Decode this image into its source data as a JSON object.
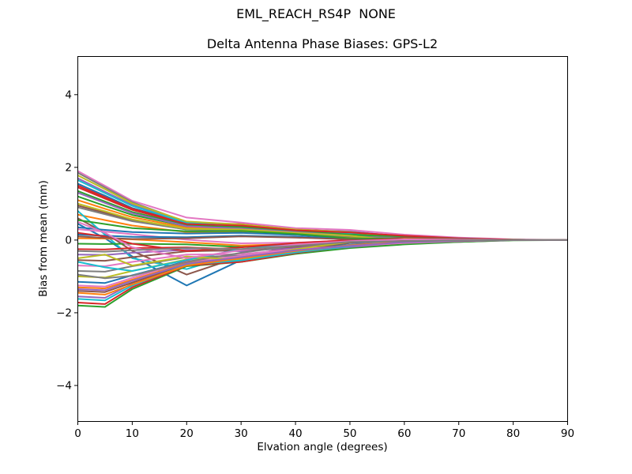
{
  "suptitle": "EML_REACH_RS4P  NONE",
  "chart_data": {
    "type": "line",
    "title": "Delta Antenna Phase Biases: GPS-L2",
    "xlabel": "Elvation angle (degrees)",
    "ylabel": "Bias from mean (mm)",
    "xlim": [
      0,
      90
    ],
    "ylim": [
      -4.99,
      5.05
    ],
    "xticks": [
      0,
      10,
      20,
      30,
      40,
      50,
      60,
      70,
      80,
      90
    ],
    "yticks": [
      -4,
      -2,
      0,
      2,
      4
    ],
    "grid": false,
    "legend": "none",
    "x": [
      0,
      5,
      10,
      20,
      30,
      40,
      50,
      60,
      70,
      80,
      90
    ],
    "series": [
      {
        "color": "#1f77b4",
        "values": [
          1.55,
          1.22,
          0.88,
          0.47,
          0.42,
          0.29,
          0.2,
          0.1,
          0.05,
          0.01,
          0
        ]
      },
      {
        "color": "#ff7f0e",
        "values": [
          1.1,
          0.86,
          0.63,
          0.34,
          0.32,
          0.22,
          0.1,
          -0.05,
          -0.03,
          0,
          0
        ]
      },
      {
        "color": "#2ca02c",
        "values": [
          1.35,
          1.06,
          0.77,
          0.42,
          0.38,
          0.26,
          0.18,
          0.08,
          0.03,
          0.01,
          0
        ]
      },
      {
        "color": "#d62728",
        "values": [
          1.5,
          1.18,
          0.86,
          0.47,
          0.44,
          0.3,
          0.22,
          -0.08,
          -0.04,
          0,
          0
        ]
      },
      {
        "color": "#9467bd",
        "values": [
          1.7,
          1.33,
          0.97,
          0.49,
          0.41,
          0.27,
          0.24,
          0.09,
          0.04,
          0.01,
          0
        ]
      },
      {
        "color": "#8c564b",
        "values": [
          0.95,
          0.75,
          0.54,
          0.29,
          0.26,
          0.18,
          0.08,
          -0.04,
          -0.03,
          0,
          0
        ]
      },
      {
        "color": "#e377c2",
        "values": [
          1.9,
          1.49,
          1.08,
          0.62,
          0.48,
          0.33,
          0.28,
          0.15,
          0.07,
          0.02,
          0
        ]
      },
      {
        "color": "#7f7f7f",
        "values": [
          1.85,
          1.45,
          1.04,
          0.49,
          0.35,
          0.23,
          0.18,
          -0.1,
          -0.05,
          0,
          0
        ]
      },
      {
        "color": "#bcbd22",
        "values": [
          1.78,
          1.4,
          1.01,
          0.51,
          0.43,
          0.29,
          0.22,
          0.07,
          0.03,
          0.01,
          0
        ]
      },
      {
        "color": "#17becf",
        "values": [
          1.65,
          1.29,
          0.94,
          0.47,
          0.38,
          0.25,
          0.19,
          -0.05,
          -0.02,
          0,
          0
        ]
      },
      {
        "color": "#1f77b4",
        "values": [
          0.45,
          0.05,
          -0.45,
          -1.25,
          -0.55,
          -0.2,
          -0.06,
          -0.08,
          -0.04,
          0,
          0
        ]
      },
      {
        "color": "#ff7f0e",
        "values": [
          0.7,
          0.55,
          0.4,
          0.22,
          0.21,
          0.14,
          0.07,
          0.05,
          0.03,
          0,
          0
        ]
      },
      {
        "color": "#2ca02c",
        "values": [
          1.2,
          0.94,
          0.69,
          0.38,
          0.36,
          0.25,
          0.15,
          0.09,
          0.04,
          0.01,
          0
        ]
      },
      {
        "color": "#d62728",
        "values": [
          1.45,
          1.14,
          0.83,
          0.44,
          0.4,
          0.27,
          0.21,
          0.12,
          0.05,
          0.01,
          0
        ]
      },
      {
        "color": "#9467bd",
        "values": [
          1.3,
          1.02,
          0.74,
          0.38,
          0.32,
          0.22,
          0.12,
          -0.07,
          -0.04,
          0,
          0
        ]
      },
      {
        "color": "#8c564b",
        "values": [
          0.6,
          0.2,
          -0.3,
          -0.95,
          -0.45,
          -0.18,
          -0.06,
          0.02,
          0.01,
          0,
          0
        ]
      },
      {
        "color": "#e377c2",
        "values": [
          0.3,
          0.23,
          0.16,
          0.01,
          -0.09,
          -0.07,
          -0.01,
          0.04,
          0.02,
          0,
          0
        ]
      },
      {
        "color": "#7f7f7f",
        "values": [
          0.9,
          0.71,
          0.52,
          0.29,
          0.27,
          0.19,
          0.1,
          0.06,
          0.03,
          0,
          0
        ]
      },
      {
        "color": "#bcbd22",
        "values": [
          1.0,
          0.79,
          0.57,
          0.31,
          0.29,
          0.2,
          0.12,
          -0.04,
          -0.03,
          0,
          0
        ]
      },
      {
        "color": "#17becf",
        "values": [
          0.8,
          0.15,
          -0.5,
          -0.8,
          -0.35,
          -0.12,
          -0.03,
          0.02,
          0.01,
          0,
          0
        ]
      },
      {
        "color": "#1f77b4",
        "values": [
          0.15,
          0.12,
          0.09,
          0.08,
          0.12,
          0.09,
          0.02,
          -0.03,
          -0.02,
          0,
          0
        ]
      },
      {
        "color": "#ff7f0e",
        "values": [
          0.05,
          0.04,
          0.02,
          -0.06,
          -0.15,
          -0.11,
          -0.02,
          0.05,
          0.03,
          0,
          0
        ]
      },
      {
        "color": "#2ca02c",
        "values": [
          -0.1,
          -0.11,
          -0.1,
          -0.12,
          -0.19,
          -0.14,
          -0.05,
          -0.04,
          -0.02,
          0,
          0
        ]
      },
      {
        "color": "#d62728",
        "values": [
          -0.25,
          -0.26,
          -0.22,
          -0.2,
          -0.26,
          -0.18,
          -0.03,
          0.05,
          0.03,
          0,
          0
        ]
      },
      {
        "color": "#9467bd",
        "values": [
          -0.4,
          -0.41,
          -0.35,
          -0.27,
          -0.31,
          -0.21,
          -0.07,
          -0.07,
          -0.03,
          0,
          0
        ]
      },
      {
        "color": "#8c564b",
        "values": [
          -0.55,
          -0.57,
          -0.47,
          -0.31,
          -0.28,
          -0.18,
          -0.04,
          0.07,
          0.04,
          0,
          0
        ]
      },
      {
        "color": "#e377c2",
        "values": [
          -0.7,
          -0.72,
          -0.6,
          -0.4,
          -0.39,
          -0.25,
          -0.15,
          -0.09,
          -0.05,
          0,
          0
        ]
      },
      {
        "color": "#7f7f7f",
        "values": [
          -0.85,
          -0.87,
          -0.72,
          -0.47,
          -0.43,
          -0.28,
          -0.13,
          0.03,
          0.02,
          0,
          0
        ]
      },
      {
        "color": "#bcbd22",
        "values": [
          -1.0,
          -1.03,
          -0.85,
          -0.53,
          -0.47,
          -0.3,
          -0.17,
          -0.06,
          -0.03,
          0,
          0
        ]
      },
      {
        "color": "#17becf",
        "values": [
          -0.6,
          -0.75,
          -0.85,
          -0.55,
          -0.25,
          -0.1,
          -0.02,
          0.03,
          0.02,
          0,
          0
        ]
      },
      {
        "color": "#1f77b4",
        "values": [
          -1.15,
          -1.18,
          -0.97,
          -0.58,
          -0.48,
          -0.3,
          -0.08,
          0.04,
          0.03,
          0,
          0
        ]
      },
      {
        "color": "#ff7f0e",
        "values": [
          -1.3,
          -1.33,
          -1.09,
          -0.63,
          -0.48,
          -0.29,
          -0.18,
          -0.1,
          -0.04,
          0,
          0
        ]
      },
      {
        "color": "#2ca02c",
        "values": [
          -1.8,
          -1.84,
          -1.35,
          -0.72,
          -0.6,
          -0.38,
          -0.22,
          -0.12,
          -0.05,
          -0.01,
          0
        ]
      },
      {
        "color": "#d62728",
        "values": [
          -1.72,
          -1.76,
          -1.3,
          -0.7,
          -0.6,
          -0.36,
          -0.17,
          0.03,
          0.02,
          0,
          0
        ]
      },
      {
        "color": "#9467bd",
        "values": [
          -1.55,
          -1.59,
          -1.2,
          -0.66,
          -0.54,
          -0.32,
          -0.19,
          -0.07,
          -0.03,
          0,
          0
        ]
      },
      {
        "color": "#8c564b",
        "values": [
          -1.4,
          -1.43,
          -1.17,
          -0.66,
          -0.48,
          -0.28,
          -0.07,
          0.05,
          0.03,
          0,
          0
        ]
      },
      {
        "color": "#e377c2",
        "values": [
          -1.25,
          -1.28,
          -1.04,
          -0.59,
          -0.44,
          -0.26,
          -0.16,
          -0.08,
          -0.03,
          0,
          0
        ]
      },
      {
        "color": "#7f7f7f",
        "values": [
          -0.95,
          -1.05,
          -0.98,
          -0.6,
          -0.35,
          -0.15,
          -0.05,
          0.02,
          0.01,
          0,
          0
        ]
      },
      {
        "color": "#bcbd22",
        "values": [
          -0.5,
          -0.4,
          -0.7,
          -0.45,
          -0.55,
          -0.25,
          -0.05,
          0.04,
          0.02,
          0,
          0
        ]
      },
      {
        "color": "#17becf",
        "values": [
          -1.62,
          -1.66,
          -1.25,
          -0.68,
          -0.56,
          -0.34,
          -0.17,
          0.02,
          0.01,
          0,
          0
        ]
      },
      {
        "color": "#1f77b4",
        "values": [
          0.35,
          0.28,
          0.22,
          0.18,
          0.2,
          0.14,
          0.04,
          0.02,
          0.01,
          0,
          0
        ]
      },
      {
        "color": "#ff7f0e",
        "values": [
          -1.45,
          -1.5,
          -1.22,
          -0.7,
          -0.5,
          -0.3,
          -0.15,
          -0.04,
          -0.01,
          0,
          0
        ]
      },
      {
        "color": "#2ca02c",
        "values": [
          0.55,
          0.44,
          0.33,
          0.24,
          0.25,
          0.17,
          0.05,
          0.03,
          0.02,
          0,
          0
        ]
      },
      {
        "color": "#d62728",
        "values": [
          0.2,
          0.1,
          -0.1,
          -0.3,
          -0.2,
          -0.08,
          0.0,
          0.03,
          0.02,
          0,
          0
        ]
      },
      {
        "color": "#9467bd",
        "values": [
          -1.35,
          -1.38,
          -1.12,
          -0.65,
          -0.47,
          -0.28,
          -0.16,
          -0.06,
          -0.02,
          0,
          0
        ]
      },
      {
        "color": "#8c564b",
        "values": [
          0.1,
          0.06,
          0.03,
          0.05,
          0.1,
          0.07,
          0.02,
          -0.02,
          -0.01,
          0,
          0
        ]
      },
      {
        "color": "#e377c2",
        "values": [
          0.5,
          0.2,
          -0.2,
          -0.5,
          -0.28,
          -0.12,
          -0.03,
          0.02,
          0.01,
          0,
          0
        ]
      },
      {
        "color": "#7f7f7f",
        "values": [
          -0.3,
          -0.32,
          -0.28,
          -0.22,
          -0.25,
          -0.16,
          -0.05,
          -0.03,
          -0.01,
          0,
          0
        ]
      }
    ]
  }
}
